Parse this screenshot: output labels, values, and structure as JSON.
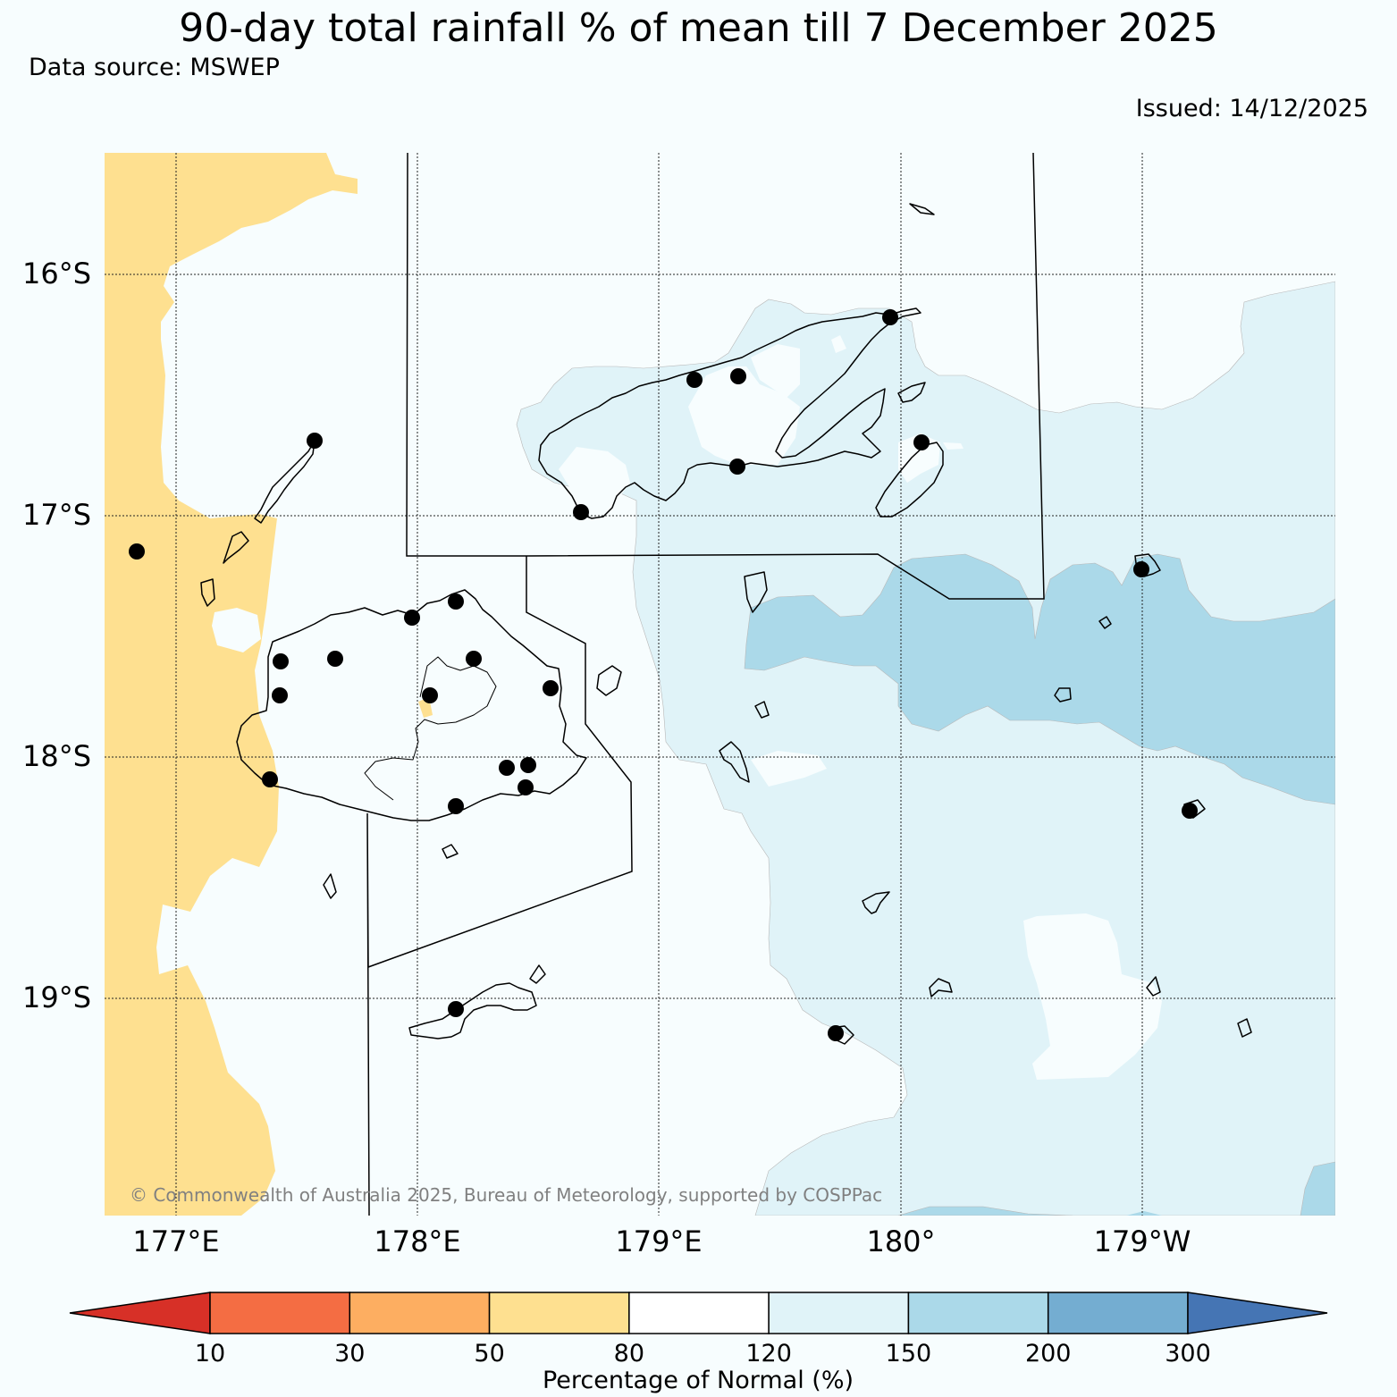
{
  "title": "90-day total rainfall % of mean till 7 December 2025",
  "data_source": "Data source: MSWEP",
  "issued": "Issued: 14/12/2025",
  "copyright": "© Commonwealth of Australia 2025, Bureau of Meteorology, supported by COSPPac",
  "lat_labels": [
    "16°S",
    "17°S",
    "18°S",
    "19°S"
  ],
  "lon_labels": [
    "177°E",
    "178°E",
    "179°E",
    "180°",
    "179°W"
  ],
  "colorbar": {
    "label": "Percentage of Normal (%)",
    "ticks": [
      "10",
      "30",
      "50",
      "80",
      "120",
      "150",
      "200",
      "300"
    ],
    "colors": [
      "#d73027",
      "#f46d43",
      "#fdae61",
      "#fee090",
      "#ffffff",
      "#e0f3f8",
      "#abd9e9",
      "#74add1",
      "#4575b4"
    ]
  },
  "legend_colors": {
    "below_80": "#fee090",
    "normal": "#f7fdfe",
    "above_120": "#e0f3f8",
    "above_150": "#abd9e9"
  }
}
